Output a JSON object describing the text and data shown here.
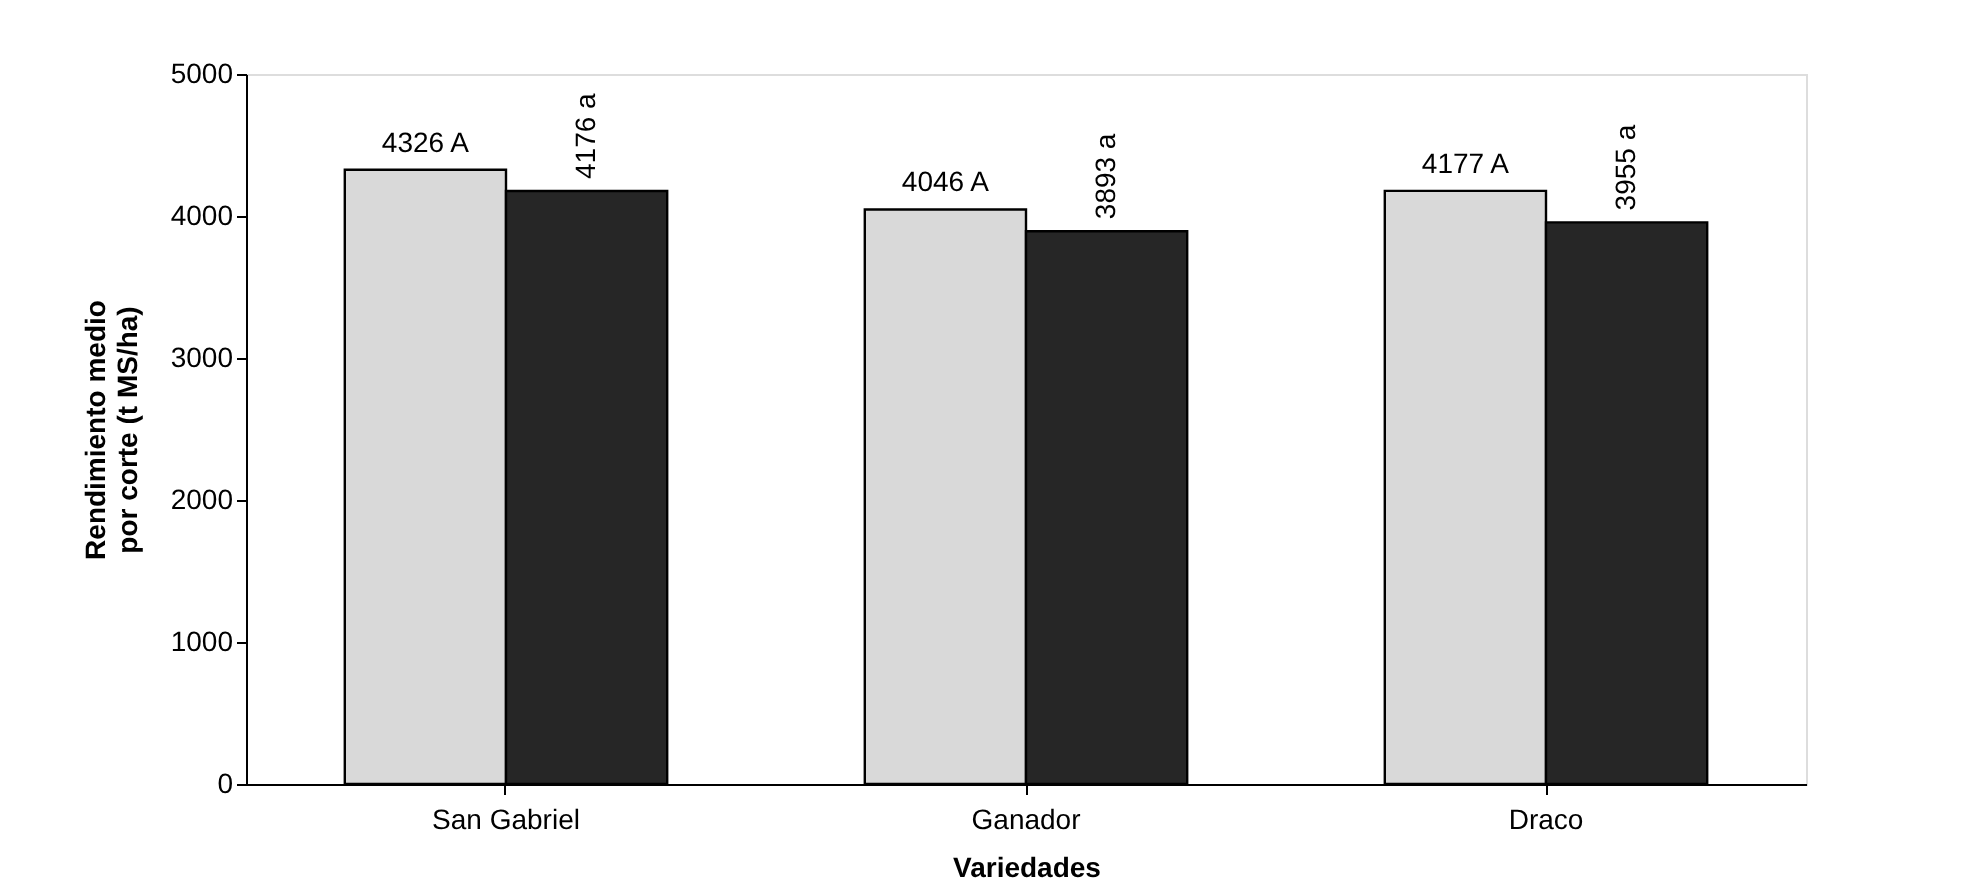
{
  "chart_data": {
    "type": "bar",
    "xlabel": "Variedades",
    "ylabel": "Rendimiento medio por corte (t MS/ha)",
    "categories": [
      "San Gabriel",
      "Ganador",
      "Draco"
    ],
    "series": [
      {
        "color": "#d9d9d9",
        "values": [
          4326,
          4046,
          4177
        ],
        "value_labels": [
          "4326 A",
          "4046 A",
          "4177 A"
        ]
      },
      {
        "color": "#262626",
        "values": [
          4176,
          3893,
          3955
        ],
        "value_labels": [
          "4176 a",
          "3893 a",
          "3955 a"
        ]
      }
    ],
    "ylim": [
      0,
      5000
    ],
    "yticks": [
      0,
      1000,
      2000,
      3000,
      4000,
      5000
    ],
    "grid": false,
    "legend": false
  }
}
